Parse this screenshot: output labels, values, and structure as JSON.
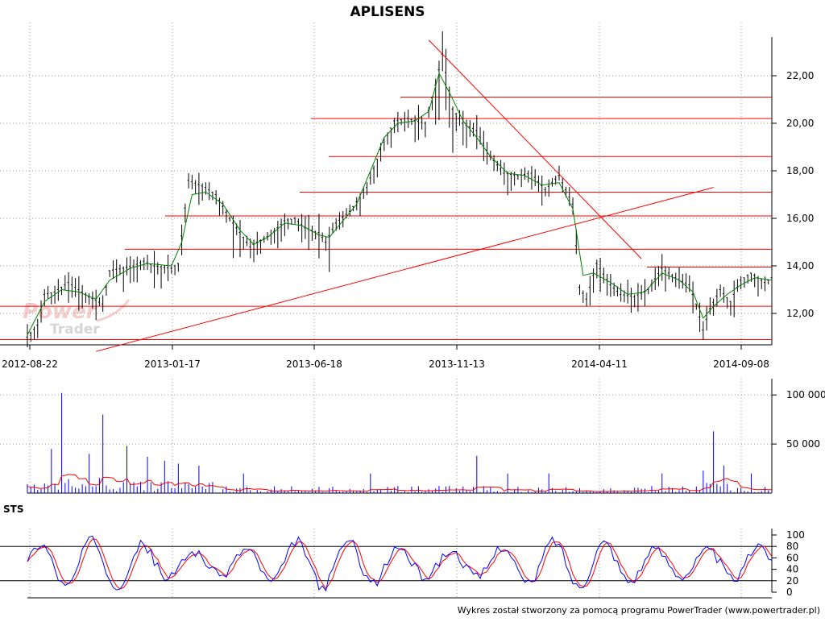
{
  "title": "APLISENS",
  "footer": "Wykres został stworzony za pomocą programu PowerTrader (www.powertrader.pl)",
  "watermark": {
    "line1": "Power",
    "line2": "Trader"
  },
  "indicator_label": "STS",
  "chart_data": [
    {
      "type": "candlestick",
      "title": "APLISENS",
      "x_ticks": [
        "2012-08-22",
        "2013-01-17",
        "2013-06-18",
        "2013-11-13",
        "2014-04-11",
        "2014-09-08"
      ],
      "y_ticks": [
        "12,00",
        "14,00",
        "16,00",
        "18,00",
        "20,00",
        "22,00"
      ],
      "ylim": [
        10.5,
        23.6
      ],
      "grid": true,
      "price_path": [
        [
          0,
          11.0
        ],
        [
          3,
          11.5
        ],
        [
          5,
          12.8
        ],
        [
          8,
          12.9
        ],
        [
          12,
          13.3
        ],
        [
          15,
          13.0
        ],
        [
          18,
          12.7
        ],
        [
          22,
          12.4
        ],
        [
          24,
          13.8
        ],
        [
          28,
          13.9
        ],
        [
          31,
          14.0
        ],
        [
          34,
          14.2
        ],
        [
          37,
          14.0
        ],
        [
          42,
          13.9
        ],
        [
          44,
          14.1
        ],
        [
          47,
          17.6
        ],
        [
          52,
          17.3
        ],
        [
          55,
          17.0
        ],
        [
          59,
          16.0
        ],
        [
          62,
          15.4
        ],
        [
          65,
          14.8
        ],
        [
          67,
          15.0
        ],
        [
          71,
          15.3
        ],
        [
          75,
          15.9
        ],
        [
          78,
          16.0
        ],
        [
          81,
          15.6
        ],
        [
          85,
          15.4
        ],
        [
          87,
          15.0
        ],
        [
          90,
          15.8
        ],
        [
          94,
          16.3
        ],
        [
          99,
          17.3
        ],
        [
          103,
          18.9
        ],
        [
          107,
          20.1
        ],
        [
          111,
          20.2
        ],
        [
          116,
          20.0
        ],
        [
          119,
          21.6
        ],
        [
          121,
          22.9
        ],
        [
          124,
          20.6
        ],
        [
          127,
          20.0
        ],
        [
          131,
          19.7
        ],
        [
          135,
          18.6
        ],
        [
          139,
          17.9
        ],
        [
          143,
          17.8
        ],
        [
          147,
          17.9
        ],
        [
          151,
          17.2
        ],
        [
          155,
          17.8
        ],
        [
          159,
          16.6
        ],
        [
          161,
          13.1
        ],
        [
          163,
          12.6
        ],
        [
          166,
          14.1
        ],
        [
          170,
          13.2
        ],
        [
          173,
          12.8
        ],
        [
          177,
          12.7
        ],
        [
          181,
          13.0
        ],
        [
          185,
          13.9
        ],
        [
          189,
          13.5
        ],
        [
          193,
          13.2
        ],
        [
          195,
          12.4
        ],
        [
          197,
          11.3
        ],
        [
          199,
          12.2
        ],
        [
          202,
          13.0
        ],
        [
          205,
          12.5
        ],
        [
          208,
          13.4
        ],
        [
          211,
          13.7
        ],
        [
          215,
          13.3
        ],
        [
          217,
          13.5
        ]
      ],
      "sma_path": [
        [
          0,
          11.1
        ],
        [
          5,
          12.5
        ],
        [
          10,
          13.0
        ],
        [
          15,
          12.9
        ],
        [
          20,
          12.6
        ],
        [
          24,
          13.4
        ],
        [
          30,
          13.9
        ],
        [
          35,
          14.1
        ],
        [
          42,
          14.0
        ],
        [
          45,
          15.0
        ],
        [
          48,
          17.0
        ],
        [
          52,
          17.1
        ],
        [
          57,
          16.6
        ],
        [
          62,
          15.5
        ],
        [
          66,
          14.9
        ],
        [
          70,
          15.2
        ],
        [
          75,
          15.8
        ],
        [
          80,
          15.7
        ],
        [
          85,
          15.3
        ],
        [
          88,
          15.2
        ],
        [
          92,
          15.9
        ],
        [
          96,
          16.6
        ],
        [
          100,
          18.0
        ],
        [
          104,
          19.4
        ],
        [
          108,
          20.0
        ],
        [
          113,
          20.1
        ],
        [
          117,
          20.5
        ],
        [
          120,
          22.1
        ],
        [
          123,
          21.3
        ],
        [
          127,
          20.1
        ],
        [
          131,
          19.4
        ],
        [
          135,
          18.6
        ],
        [
          140,
          17.9
        ],
        [
          145,
          17.8
        ],
        [
          150,
          17.4
        ],
        [
          155,
          17.5
        ],
        [
          159,
          16.4
        ],
        [
          162,
          13.6
        ],
        [
          165,
          13.7
        ],
        [
          170,
          13.3
        ],
        [
          175,
          12.8
        ],
        [
          180,
          12.9
        ],
        [
          185,
          13.7
        ],
        [
          190,
          13.4
        ],
        [
          194,
          12.9
        ],
        [
          197,
          11.8
        ],
        [
          200,
          12.3
        ],
        [
          204,
          12.8
        ],
        [
          208,
          13.2
        ],
        [
          212,
          13.5
        ],
        [
          217,
          13.4
        ]
      ],
      "support_resistance_levels": [
        12.3,
        14.7,
        16.1,
        17.1,
        18.6,
        20.2,
        21.1,
        10.9,
        13.95
      ],
      "trend_lines": [
        [
          [
            20,
            10.4
          ],
          [
            200,
            17.3
          ]
        ],
        [
          [
            117,
            23.5
          ],
          [
            179,
            14.3
          ]
        ]
      ]
    },
    {
      "type": "bar",
      "title": "",
      "y_ticks": [
        "50 000",
        "100 000"
      ],
      "ylim": [
        0,
        110000
      ],
      "series": [
        {
          "color": "#0000ff",
          "peaks": [
            [
              10,
              102000
            ],
            [
              22,
              80000
            ],
            [
              7,
              45000
            ],
            [
              18,
              40000
            ],
            [
              29,
              48000
            ],
            [
              35,
              37000
            ],
            [
              40,
              33000
            ],
            [
              44,
              30000
            ],
            [
              50,
              28000
            ],
            [
              63,
              20000
            ],
            [
              100,
              20000
            ],
            [
              131,
              38000
            ],
            [
              140,
              20000
            ],
            [
              152,
              20000
            ],
            [
              185,
              20000
            ],
            [
              197,
              23000
            ],
            [
              200,
              63000
            ],
            [
              203,
              28000
            ],
            [
              211,
              20000
            ]
          ]
        },
        {
          "color": "#ff0000",
          "role": "volume average"
        }
      ]
    },
    {
      "type": "line",
      "title": "STS",
      "y_ticks": [
        "0",
        "20",
        "40",
        "60",
        "80",
        "100"
      ],
      "ylim": [
        0,
        100
      ],
      "reference_lines": [
        20,
        80
      ],
      "series": [
        {
          "color": "#0000ff"
        },
        {
          "color": "#ff0000"
        }
      ]
    }
  ]
}
